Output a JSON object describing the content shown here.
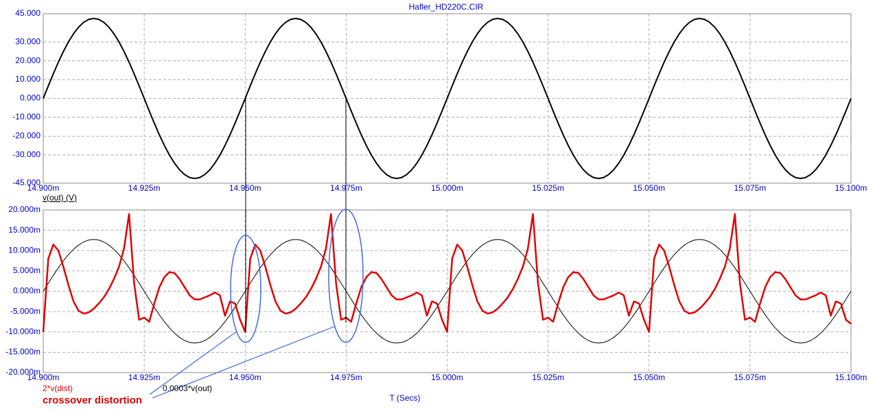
{
  "chart_data": [
    {
      "type": "line",
      "title": "Hafler_HD220C.CIR",
      "x": [
        14.9,
        14.90125,
        14.9025,
        14.90375,
        14.905,
        14.90625,
        14.9075,
        14.90875,
        14.91,
        14.91125,
        14.9125,
        14.91375,
        14.915,
        14.91625,
        14.9175,
        14.91875,
        14.92,
        14.92125,
        14.9225,
        14.92375,
        14.925,
        14.92625,
        14.9275,
        14.92875,
        14.93,
        14.93125,
        14.9325,
        14.93375,
        14.935,
        14.93625,
        14.9375,
        14.93875,
        14.94,
        14.94125,
        14.9425,
        14.94375,
        14.945,
        14.94625,
        14.9475,
        14.94875,
        14.95,
        14.95125,
        14.9525,
        14.95375,
        14.955,
        14.95625,
        14.9575,
        14.95875,
        14.96,
        14.96125,
        14.9625,
        14.96375,
        14.965,
        14.96625,
        14.9675,
        14.96875,
        14.97,
        14.97125,
        14.9725,
        14.97375,
        14.975,
        14.97625,
        14.9775,
        14.97875,
        14.98,
        14.98125,
        14.9825,
        14.98375,
        14.985,
        14.98625,
        14.9875,
        14.98875,
        14.99,
        14.99125,
        14.9925,
        14.99375,
        14.995,
        14.99625,
        14.9975,
        14.99875,
        15.0,
        15.00125,
        15.0025,
        15.00375,
        15.005,
        15.00625,
        15.0075,
        15.00875,
        15.01,
        15.01125,
        15.0125,
        15.01375,
        15.015,
        15.01625,
        15.0175,
        15.01875,
        15.02,
        15.02125,
        15.0225,
        15.02375,
        15.025,
        15.02625,
        15.0275,
        15.02875,
        15.03,
        15.03125,
        15.0325,
        15.03375,
        15.035,
        15.03625,
        15.0375,
        15.03875,
        15.04,
        15.04125,
        15.0425,
        15.04375,
        15.045,
        15.04625,
        15.0475,
        15.04875,
        15.05,
        15.05125,
        15.0525,
        15.05375,
        15.055,
        15.05625,
        15.0575,
        15.05875,
        15.06,
        15.06125,
        15.0625,
        15.06375,
        15.065,
        15.06625,
        15.0675,
        15.06875,
        15.07,
        15.07125,
        15.0725,
        15.07375,
        15.075,
        15.07625,
        15.0775,
        15.07875,
        15.08,
        15.08125,
        15.0825,
        15.08375,
        15.085,
        15.08625,
        15.0875,
        15.08875,
        15.09,
        15.09125,
        15.0925,
        15.09375,
        15.095,
        15.09625,
        15.0975,
        15.09875,
        15.1
      ],
      "series": [
        {
          "name": "v(out) (V)",
          "color": "#000000",
          "values": [
            0,
            6.65,
            13.13,
            19.3,
            24.98,
            30.05,
            34.38,
            37.87,
            40.42,
            41.98,
            42.5,
            41.98,
            40.42,
            37.87,
            34.38,
            30.05,
            24.98,
            19.3,
            13.13,
            6.65,
            0,
            -6.65,
            -13.13,
            -19.3,
            -24.98,
            -30.05,
            -34.38,
            -37.87,
            -40.42,
            -41.98,
            -42.5,
            -41.98,
            -40.42,
            -37.87,
            -34.38,
            -30.05,
            -24.98,
            -19.3,
            -13.13,
            -6.65,
            0,
            6.65,
            13.13,
            19.3,
            24.98,
            30.05,
            34.38,
            37.87,
            40.42,
            41.98,
            42.5,
            41.98,
            40.42,
            37.87,
            34.38,
            30.05,
            24.98,
            19.3,
            13.13,
            6.65,
            0,
            -6.65,
            -13.13,
            -19.3,
            -24.98,
            -30.05,
            -34.38,
            -37.87,
            -40.42,
            -41.98,
            -42.5,
            -41.98,
            -40.42,
            -37.87,
            -34.38,
            -30.05,
            -24.98,
            -19.3,
            -13.13,
            -6.65,
            0,
            6.65,
            13.13,
            19.3,
            24.98,
            30.05,
            34.38,
            37.87,
            40.42,
            41.98,
            42.5,
            41.98,
            40.42,
            37.87,
            34.38,
            30.05,
            24.98,
            19.3,
            13.13,
            6.65,
            0,
            -6.65,
            -13.13,
            -19.3,
            -24.98,
            -30.05,
            -34.38,
            -37.87,
            -40.42,
            -41.98,
            -42.5,
            -41.98,
            -40.42,
            -37.87,
            -34.38,
            -30.05,
            -24.98,
            -19.3,
            -13.13,
            -6.65,
            0,
            6.65,
            13.13,
            19.3,
            24.98,
            30.05,
            34.38,
            37.87,
            40.42,
            41.98,
            42.5,
            41.98,
            40.42,
            37.87,
            34.38,
            30.05,
            24.98,
            19.3,
            13.13,
            6.65,
            0,
            -6.65,
            -13.13,
            -19.3,
            -24.98,
            -30.05,
            -34.38,
            -37.87,
            -40.42,
            -41.98,
            -42.5,
            -41.98,
            -40.42,
            -37.87,
            -34.38,
            -30.05,
            -24.98,
            -19.3,
            -13.13,
            -6.65,
            0
          ]
        }
      ],
      "xlim": [
        14.9,
        15.1
      ],
      "xticks": [
        {
          "value": 14.9,
          "label": "14.900m"
        },
        {
          "value": 14.925,
          "label": "14.925m"
        },
        {
          "value": 14.95,
          "label": "14.950m"
        },
        {
          "value": 14.975,
          "label": "14.975m"
        },
        {
          "value": 15.0,
          "label": "15.000m"
        },
        {
          "value": 15.025,
          "label": "15.025m"
        },
        {
          "value": 15.05,
          "label": "15.050m"
        },
        {
          "value": 15.075,
          "label": "15.075m"
        },
        {
          "value": 15.1,
          "label": "15.100m"
        }
      ],
      "ylim": [
        -45,
        45
      ],
      "yticks": [
        {
          "value": 45,
          "label": "45.000"
        },
        {
          "value": 30,
          "label": "30.000"
        },
        {
          "value": 20,
          "label": "20.000"
        },
        {
          "value": 10,
          "label": "10.000"
        },
        {
          "value": 0,
          "label": "0.000"
        },
        {
          "value": -10,
          "label": "-10.000"
        },
        {
          "value": -20,
          "label": "-20.000"
        },
        {
          "value": -30,
          "label": "-30.000"
        },
        {
          "value": -45,
          "label": "-45.000"
        }
      ],
      "grid": true
    },
    {
      "type": "line",
      "x_label": "T (Secs)",
      "annotation": "crossover distortion",
      "x": [
        14.9,
        14.90125,
        14.9025,
        14.90375,
        14.905,
        14.90625,
        14.9075,
        14.90875,
        14.91,
        14.91125,
        14.9125,
        14.91375,
        14.915,
        14.91625,
        14.9175,
        14.91875,
        14.92,
        14.92125,
        14.9225,
        14.92375,
        14.925,
        14.92625,
        14.9275,
        14.92875,
        14.93,
        14.93125,
        14.9325,
        14.93375,
        14.935,
        14.93625,
        14.9375,
        14.93875,
        14.94,
        14.94125,
        14.9425,
        14.94375,
        14.945,
        14.94625,
        14.9475,
        14.94875,
        14.95,
        14.95125,
        14.9525,
        14.95375,
        14.955,
        14.95625,
        14.9575,
        14.95875,
        14.96,
        14.96125,
        14.9625,
        14.96375,
        14.965,
        14.96625,
        14.9675,
        14.96875,
        14.97,
        14.97125,
        14.9725,
        14.97375,
        14.975,
        14.97625,
        14.9775,
        14.97875,
        14.98,
        14.98125,
        14.9825,
        14.98375,
        14.985,
        14.98625,
        14.9875,
        14.98875,
        14.99,
        14.99125,
        14.9925,
        14.99375,
        14.995,
        14.99625,
        14.9975,
        14.99875,
        15.0,
        15.00125,
        15.0025,
        15.00375,
        15.005,
        15.00625,
        15.0075,
        15.00875,
        15.01,
        15.01125,
        15.0125,
        15.01375,
        15.015,
        15.01625,
        15.0175,
        15.01875,
        15.02,
        15.02125,
        15.0225,
        15.02375,
        15.025,
        15.02625,
        15.0275,
        15.02875,
        15.03,
        15.03125,
        15.0325,
        15.03375,
        15.035,
        15.03625,
        15.0375,
        15.03875,
        15.04,
        15.04125,
        15.0425,
        15.04375,
        15.045,
        15.04625,
        15.0475,
        15.04875,
        15.05,
        15.05125,
        15.0525,
        15.05375,
        15.055,
        15.05625,
        15.0575,
        15.05875,
        15.06,
        15.06125,
        15.0625,
        15.06375,
        15.065,
        15.06625,
        15.0675,
        15.06875,
        15.07,
        15.07125,
        15.0725,
        15.07375,
        15.075,
        15.07625,
        15.0775,
        15.07875,
        15.08,
        15.08125,
        15.0825,
        15.08375,
        15.085,
        15.08625,
        15.0875,
        15.08875,
        15.09,
        15.09125,
        15.0925,
        15.09375,
        15.095,
        15.09625,
        15.0975,
        15.09875,
        15.1
      ],
      "series": [
        {
          "name": "0.0003*v(out)",
          "color": "#000000",
          "values": [
            0,
            1.99,
            3.94,
            5.79,
            7.49,
            9.02,
            10.31,
            11.36,
            12.13,
            12.59,
            12.75,
            12.59,
            12.13,
            11.36,
            10.31,
            9.02,
            7.49,
            5.79,
            3.94,
            1.99,
            0,
            -1.99,
            -3.94,
            -5.79,
            -7.49,
            -9.02,
            -10.31,
            -11.36,
            -12.13,
            -12.59,
            -12.75,
            -12.59,
            -12.13,
            -11.36,
            -10.31,
            -9.02,
            -7.49,
            -5.79,
            -3.94,
            -1.99,
            0,
            1.99,
            3.94,
            5.79,
            7.49,
            9.02,
            10.31,
            11.36,
            12.13,
            12.59,
            12.75,
            12.59,
            12.13,
            11.36,
            10.31,
            9.02,
            7.49,
            5.79,
            3.94,
            1.99,
            0,
            -1.99,
            -3.94,
            -5.79,
            -7.49,
            -9.02,
            -10.31,
            -11.36,
            -12.13,
            -12.59,
            -12.75,
            -12.59,
            -12.13,
            -11.36,
            -10.31,
            -9.02,
            -7.49,
            -5.79,
            -3.94,
            -1.99,
            0,
            1.99,
            3.94,
            5.79,
            7.49,
            9.02,
            10.31,
            11.36,
            12.13,
            12.59,
            12.75,
            12.59,
            12.13,
            11.36,
            10.31,
            9.02,
            7.49,
            5.79,
            3.94,
            1.99,
            0,
            -1.99,
            -3.94,
            -5.79,
            -7.49,
            -9.02,
            -10.31,
            -11.36,
            -12.13,
            -12.59,
            -12.75,
            -12.59,
            -12.13,
            -11.36,
            -10.31,
            -9.02,
            -7.49,
            -5.79,
            -3.94,
            -1.99,
            0,
            1.99,
            3.94,
            5.79,
            7.49,
            9.02,
            10.31,
            11.36,
            12.13,
            12.59,
            12.75,
            12.59,
            12.13,
            11.36,
            10.31,
            9.02,
            7.49,
            5.79,
            3.94,
            1.99,
            0,
            -1.99,
            -3.94,
            -5.79,
            -7.49,
            -9.02,
            -10.31,
            -11.36,
            -12.13,
            -12.59,
            -12.75,
            -12.59,
            -12.13,
            -11.36,
            -10.31,
            -9.02,
            -7.49,
            -5.79,
            -3.94,
            -1.99,
            0
          ]
        },
        {
          "name": "2*v(dist)",
          "color": "#e00000",
          "values": [
            -10,
            8,
            11.5,
            10,
            6,
            1.5,
            -2.5,
            -4.8,
            -5.5,
            -5.2,
            -4.3,
            -3,
            -1.5,
            0.5,
            3,
            6,
            10.5,
            19,
            2,
            -7,
            -6.5,
            -7.5,
            -3,
            1,
            3.5,
            4.7,
            4.5,
            3,
            1,
            -1,
            -2,
            -2,
            -1.5,
            -1,
            -0.3,
            -1,
            -6,
            -2.5,
            -3,
            -7,
            -10,
            8,
            11.5,
            10,
            6,
            1.5,
            -2.5,
            -4.8,
            -5.5,
            -5.2,
            -4.3,
            -3,
            -1.5,
            0.5,
            3,
            6,
            10.5,
            19,
            2,
            -7,
            -6.5,
            -7.5,
            -3,
            1,
            3.5,
            4.7,
            4.5,
            3,
            1,
            -1,
            -2,
            -2,
            -1.5,
            -1,
            -0.3,
            -1,
            -6,
            -2.5,
            -3,
            -7,
            -10,
            8,
            11.5,
            10,
            6,
            1.5,
            -2.5,
            -4.8,
            -5.5,
            -5.2,
            -4.3,
            -3,
            -1.5,
            0.5,
            3,
            6,
            10.5,
            19,
            2,
            -7,
            -6.5,
            -7.5,
            -3,
            1,
            3.5,
            4.7,
            4.5,
            3,
            1,
            -1,
            -2,
            -2,
            -1.5,
            -1,
            -0.3,
            -1,
            -6,
            -2.5,
            -3,
            -7,
            -10,
            8,
            11.5,
            10,
            6,
            1.5,
            -2.5,
            -4.8,
            -5.5,
            -5.2,
            -4.3,
            -3,
            -1.5,
            0.5,
            3,
            6,
            10.5,
            19,
            2,
            -7,
            -6.5,
            -7.5,
            -3,
            1,
            3.5,
            4.7,
            4.5,
            3,
            1,
            -1,
            -2,
            -2,
            -1.5,
            -1,
            -0.3,
            -1,
            -6,
            -2.5,
            -3,
            -7,
            -8
          ]
        }
      ],
      "xlim": [
        14.9,
        15.1
      ],
      "xticks": [
        {
          "value": 14.9,
          "label": "14.900m"
        },
        {
          "value": 14.925,
          "label": "14.925m"
        },
        {
          "value": 14.95,
          "label": "14.950m"
        },
        {
          "value": 14.975,
          "label": "14.975m"
        },
        {
          "value": 15.0,
          "label": "15.000m"
        },
        {
          "value": 15.025,
          "label": "15.025m"
        },
        {
          "value": 15.05,
          "label": "15.050m"
        },
        {
          "value": 15.075,
          "label": "15.075m"
        },
        {
          "value": 15.1,
          "label": "15.100m"
        }
      ],
      "ylim": [
        -20,
        20
      ],
      "yticks": [
        {
          "value": 20,
          "label": "20.000m"
        },
        {
          "value": 15,
          "label": "15.000m"
        },
        {
          "value": 10,
          "label": "10.000m"
        },
        {
          "value": 5,
          "label": "5.000m"
        },
        {
          "value": 0,
          "label": "0.000m"
        },
        {
          "value": -5,
          "label": "-5.000m"
        },
        {
          "value": -10,
          "label": "-10.000m"
        },
        {
          "value": -15,
          "label": "-15.000m"
        },
        {
          "value": -20,
          "label": "-20.000m"
        }
      ],
      "grid": true
    }
  ]
}
